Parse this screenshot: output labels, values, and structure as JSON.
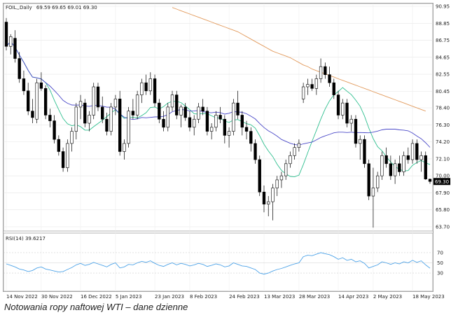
{
  "header": {
    "symbol": "FOIL,,Daily",
    "ohlc": "69.59 69.65 69.01 69.30"
  },
  "rsi_label": "RSI(14) 39.6217",
  "caption": "Notowania ropy naftowej WTI – dane dzienne",
  "colors": {
    "ma_short": "#2fbf8f",
    "ma_mid": "#4a49c8",
    "ma_long": "#e29a5c",
    "rsi": "#4da3e8",
    "candle": "#000000",
    "last_price_box": "#000000"
  },
  "chart_data": [
    {
      "type": "candlestick",
      "timeframe": "Daily",
      "price_ticks": [
        "90.95",
        "88.85",
        "86.75",
        "84.65",
        "82.55",
        "80.45",
        "78.40",
        "76.30",
        "74.20",
        "72.10",
        "70.00",
        "67.90",
        "65.80",
        "63.70"
      ],
      "ylim": [
        63.7,
        90.95
      ],
      "x_labels": [
        "14 Nov 2022",
        "30 Nov 2022",
        "16 Dec 2022",
        "5 Jan 2023",
        "23 Jan 2023",
        "8 Feb 2023",
        "24 Feb 2023",
        "13 Mar 2023",
        "28 Mar 2023",
        "14 Apr 2023",
        "2 May 2023",
        "18 May 2023"
      ],
      "last_price": "69.30",
      "ohlc": [
        [
          89.0,
          89.5,
          85.5,
          86.0
        ],
        [
          86.0,
          87.5,
          85.0,
          87.2
        ],
        [
          87.0,
          88.0,
          84.0,
          84.5
        ],
        [
          84.5,
          85.3,
          81.5,
          82.0
        ],
        [
          82.0,
          83.0,
          80.0,
          80.5
        ],
        [
          80.5,
          81.5,
          77.5,
          78.0
        ],
        [
          78.0,
          79.5,
          76.5,
          77.2
        ],
        [
          77.0,
          82.0,
          76.5,
          81.5
        ],
        [
          81.5,
          82.8,
          80.5,
          80.8
        ],
        [
          80.8,
          81.2,
          77.0,
          77.5
        ],
        [
          77.5,
          78.3,
          76.0,
          76.8
        ],
        [
          76.8,
          77.5,
          74.0,
          74.5
        ],
        [
          74.5,
          75.0,
          72.5,
          73.0
        ],
        [
          73.0,
          73.5,
          70.5,
          71.0
        ],
        [
          71.0,
          74.5,
          70.5,
          74.0
        ],
        [
          74.0,
          76.0,
          73.0,
          75.5
        ],
        [
          75.5,
          79.0,
          74.5,
          78.5
        ],
        [
          78.5,
          80.0,
          77.0,
          79.2
        ],
        [
          79.0,
          79.5,
          76.0,
          76.5
        ],
        [
          76.5,
          78.0,
          75.5,
          77.5
        ],
        [
          77.5,
          81.5,
          77.0,
          81.0
        ],
        [
          81.0,
          81.5,
          78.0,
          78.5
        ],
        [
          78.5,
          79.8,
          76.5,
          77.0
        ],
        [
          77.0,
          77.8,
          75.0,
          75.5
        ],
        [
          75.5,
          79.0,
          75.0,
          78.5
        ],
        [
          78.5,
          80.0,
          77.5,
          79.5
        ],
        [
          79.5,
          80.5,
          72.5,
          73.0
        ],
        [
          73.0,
          74.5,
          72.0,
          74.0
        ],
        [
          74.0,
          78.5,
          73.5,
          78.0
        ],
        [
          78.0,
          79.5,
          77.0,
          77.5
        ],
        [
          77.5,
          80.5,
          77.0,
          80.0
        ],
        [
          80.0,
          82.0,
          79.0,
          81.5
        ],
        [
          81.5,
          82.5,
          80.0,
          80.5
        ],
        [
          80.5,
          82.8,
          80.0,
          82.0
        ],
        [
          82.0,
          82.5,
          78.5,
          79.0
        ],
        [
          79.0,
          79.5,
          76.5,
          77.0
        ],
        [
          77.0,
          78.0,
          75.5,
          76.0
        ],
        [
          76.0,
          79.0,
          75.5,
          78.5
        ],
        [
          78.5,
          80.5,
          78.0,
          80.0
        ],
        [
          80.0,
          80.5,
          77.0,
          77.5
        ],
        [
          77.5,
          78.8,
          76.0,
          78.5
        ],
        [
          78.5,
          79.0,
          76.8,
          77.2
        ],
        [
          77.2,
          78.0,
          75.5,
          76.0
        ],
        [
          76.0,
          77.5,
          75.0,
          77.0
        ],
        [
          77.0,
          79.0,
          76.5,
          78.5
        ],
        [
          78.5,
          79.5,
          77.5,
          78.0
        ],
        [
          78.0,
          78.5,
          75.0,
          75.5
        ],
        [
          75.5,
          76.5,
          74.5,
          76.0
        ],
        [
          76.0,
          78.0,
          75.5,
          77.5
        ],
        [
          77.5,
          78.5,
          76.5,
          77.0
        ],
        [
          77.0,
          77.5,
          74.0,
          75.0
        ],
        [
          75.0,
          76.0,
          73.5,
          75.5
        ],
        [
          75.5,
          79.5,
          75.0,
          79.0
        ],
        [
          79.0,
          80.5,
          77.0,
          77.5
        ],
        [
          77.5,
          78.0,
          75.0,
          76.0
        ],
        [
          76.0,
          76.8,
          74.5,
          75.5
        ],
        [
          75.5,
          76.0,
          73.0,
          74.0
        ],
        [
          74.0,
          74.5,
          71.5,
          72.0
        ],
        [
          72.0,
          72.5,
          67.5,
          68.0
        ],
        [
          68.0,
          68.8,
          65.5,
          66.5
        ],
        [
          66.5,
          67.5,
          65.0,
          66.8
        ],
        [
          66.8,
          69.0,
          64.5,
          68.5
        ],
        [
          68.5,
          70.0,
          67.5,
          69.5
        ],
        [
          69.5,
          70.5,
          68.5,
          70.0
        ],
        [
          70.0,
          72.0,
          69.5,
          71.5
        ],
        [
          71.5,
          73.0,
          71.0,
          72.5
        ],
        [
          72.5,
          74.0,
          72.0,
          73.5
        ],
        [
          73.5,
          74.5,
          73.0,
          74.0
        ],
        [
          79.5,
          81.5,
          79.0,
          81.0
        ],
        [
          81.0,
          82.0,
          80.0,
          81.3
        ],
        [
          81.3,
          82.0,
          80.5,
          80.8
        ],
        [
          80.8,
          82.5,
          80.0,
          82.0
        ],
        [
          82.0,
          84.5,
          81.5,
          83.5
        ],
        [
          83.5,
          84.0,
          82.0,
          82.5
        ],
        [
          82.5,
          83.5,
          81.0,
          81.5
        ],
        [
          81.5,
          82.0,
          79.5,
          80.0
        ],
        [
          80.0,
          80.5,
          77.0,
          77.5
        ],
        [
          77.5,
          79.5,
          77.0,
          79.0
        ],
        [
          79.0,
          79.5,
          76.0,
          76.5
        ],
        [
          76.5,
          77.5,
          75.5,
          77.0
        ],
        [
          77.0,
          77.5,
          73.5,
          74.0
        ],
        [
          74.0,
          75.0,
          72.0,
          74.5
        ],
        [
          74.5,
          75.0,
          71.0,
          71.5
        ],
        [
          71.5,
          72.0,
          67.0,
          67.5
        ],
        [
          67.5,
          71.0,
          63.6,
          68.5
        ],
        [
          68.5,
          70.5,
          68.0,
          70.0
        ],
        [
          70.0,
          73.0,
          69.5,
          72.5
        ],
        [
          72.5,
          73.5,
          71.0,
          71.5
        ],
        [
          71.5,
          72.5,
          69.5,
          70.0
        ],
        [
          70.0,
          72.0,
          69.0,
          71.5
        ],
        [
          71.5,
          72.5,
          70.0,
          70.5
        ],
        [
          70.5,
          73.0,
          70.0,
          72.5
        ],
        [
          72.5,
          73.5,
          71.5,
          72.0
        ],
        [
          72.0,
          74.5,
          71.5,
          74.0
        ],
        [
          74.0,
          74.5,
          71.5,
          72.0
        ],
        [
          72.0,
          73.0,
          70.5,
          72.5
        ],
        [
          72.5,
          73.0,
          69.5,
          69.6
        ],
        [
          69.59,
          69.65,
          69.01,
          69.3
        ]
      ],
      "rsi": {
        "label": "RSI(14) 39.6217",
        "levels": [
          "70",
          "50",
          "30"
        ],
        "ylim": [
          0,
          100
        ],
        "values": [
          48,
          45,
          42,
          38,
          36,
          33,
          35,
          40,
          42,
          38,
          36,
          34,
          32,
          33,
          37,
          41,
          46,
          49,
          45,
          47,
          51,
          48,
          45,
          42,
          47,
          50,
          40,
          42,
          47,
          46,
          50,
          53,
          51,
          54,
          49,
          45,
          43,
          47,
          50,
          46,
          49,
          47,
          44,
          46,
          49,
          47,
          43,
          45,
          48,
          46,
          42,
          44,
          50,
          47,
          44,
          43,
          40,
          37,
          30,
          28,
          30,
          34,
          37,
          39,
          42,
          45,
          48,
          50,
          62,
          65,
          64,
          67,
          70,
          68,
          66,
          62,
          57,
          60,
          55,
          57,
          52,
          54,
          49,
          40,
          43,
          46,
          52,
          50,
          47,
          50,
          48,
          52,
          50,
          55,
          51,
          54,
          46,
          39.6
        ]
      },
      "ma_short": {
        "period": "",
        "color": "#2fbf8f"
      },
      "ma_mid": {
        "period": "",
        "color": "#4a49c8"
      },
      "ma_long": {
        "period": "",
        "color": "#e29a5c",
        "values_start_index": 38,
        "values": [
          90.8,
          90.6,
          90.4,
          90.2,
          90.0,
          89.8,
          89.6,
          89.4,
          89.2,
          89.0,
          88.8,
          88.6,
          88.4,
          88.2,
          88.0,
          87.8,
          87.5,
          87.2,
          86.9,
          86.6,
          86.3,
          86.0,
          85.7,
          85.4,
          85.2,
          85.0,
          84.8,
          84.6,
          84.3,
          84.0,
          83.7,
          83.5,
          83.2,
          83.0,
          82.8,
          82.6,
          82.4,
          82.2,
          82.0,
          81.8,
          81.6,
          81.4,
          81.2,
          81.0,
          80.8,
          80.6,
          80.4,
          80.2,
          80.0,
          79.8,
          79.6,
          79.4,
          79.2,
          79.0,
          78.8,
          78.6,
          78.4,
          78.2,
          78.0
        ]
      }
    }
  ]
}
